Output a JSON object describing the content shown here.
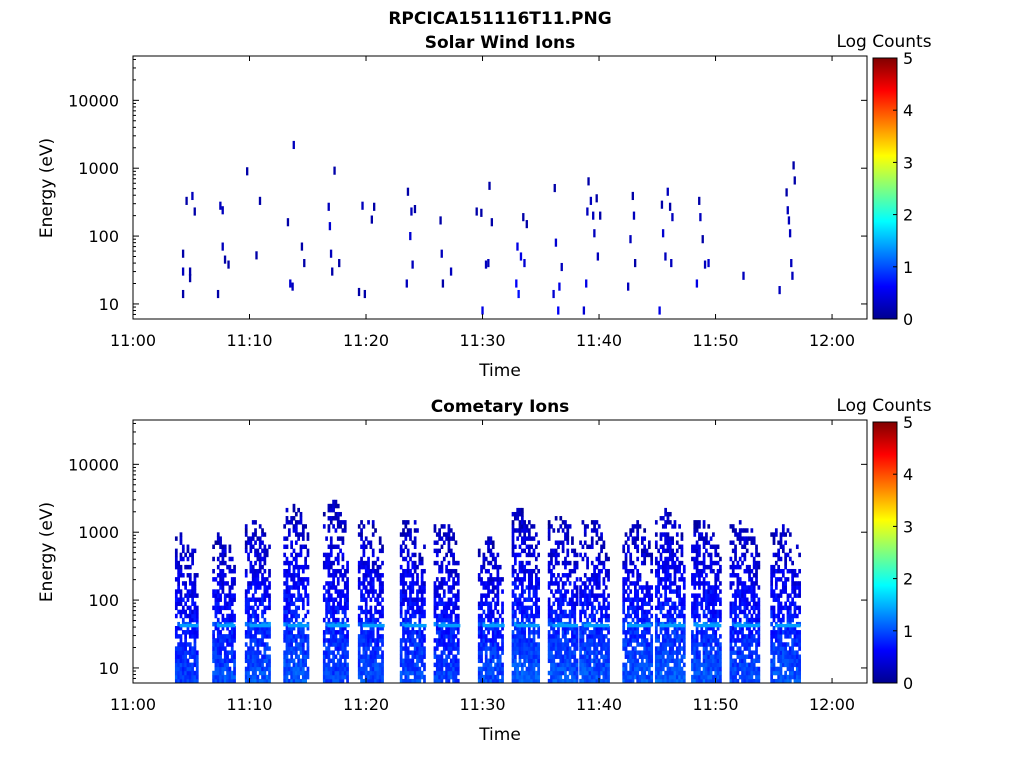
{
  "figure_title": "RPCICA151116T11.PNG",
  "chart_data": [
    {
      "type": "heatmap",
      "title": "Solar Wind Ions",
      "xlabel": "Time",
      "ylabel": "Energy (eV)",
      "x_ticks": [
        "11:00",
        "11:10",
        "11:20",
        "11:30",
        "11:40",
        "11:50",
        "12:00"
      ],
      "x_range": [
        "11:00",
        "12:03"
      ],
      "y_scale": "log",
      "y_ticks": [
        10,
        100,
        1000,
        10000
      ],
      "y_tick_labels": [
        "10",
        "100",
        "1000",
        "10000"
      ],
      "ylim": [
        6,
        45000
      ],
      "colorbar": {
        "label": "Log Counts",
        "range": [
          0,
          5
        ],
        "ticks": [
          "0",
          "1",
          "2",
          "3",
          "4",
          "5"
        ],
        "colormap": "jet"
      },
      "sweep_start_minutes": [
        4.3,
        7.5,
        10.4,
        13.6,
        17.0,
        20.0,
        23.6,
        26.4,
        30.3,
        33.0,
        36.3,
        39.2,
        42.7,
        45.5,
        49.0,
        52.2,
        55.6
      ],
      "note_cells": "Each cell: [minute after 11:00, energy eV, log counts]",
      "cells": [
        [
          4.2,
          55,
          0.2
        ],
        [
          4.2,
          30,
          0.3
        ],
        [
          4.2,
          14,
          0.2
        ],
        [
          4.5,
          330,
          0.2
        ],
        [
          4.8,
          30,
          0.2
        ],
        [
          4.8,
          24,
          0.2
        ],
        [
          5.0,
          390,
          0.3
        ],
        [
          5.2,
          230,
          0.2
        ],
        [
          7.2,
          14,
          0.2
        ],
        [
          7.4,
          280,
          0.3
        ],
        [
          7.6,
          70,
          0.3
        ],
        [
          7.6,
          240,
          0.3
        ],
        [
          7.8,
          45,
          0.2
        ],
        [
          8.1,
          38,
          0.2
        ],
        [
          9.7,
          900,
          0.2
        ],
        [
          10.5,
          52,
          0.2
        ],
        [
          10.8,
          330,
          0.2
        ],
        [
          13.2,
          160,
          0.2
        ],
        [
          13.4,
          20,
          0.4
        ],
        [
          13.6,
          18,
          0.3
        ],
        [
          13.7,
          2200,
          0.3
        ],
        [
          14.4,
          70,
          0.2
        ],
        [
          14.6,
          40,
          0.2
        ],
        [
          16.7,
          270,
          0.3
        ],
        [
          16.8,
          140,
          0.4
        ],
        [
          16.9,
          55,
          0.3
        ],
        [
          17.0,
          30,
          0.2
        ],
        [
          17.2,
          920,
          0.2
        ],
        [
          17.6,
          40,
          0.2
        ],
        [
          19.3,
          15,
          0.2
        ],
        [
          19.6,
          280,
          0.3
        ],
        [
          19.8,
          14,
          0.2
        ],
        [
          20.4,
          175,
          0.2
        ],
        [
          20.6,
          270,
          0.2
        ],
        [
          23.4,
          20,
          0.3
        ],
        [
          23.5,
          450,
          0.2
        ],
        [
          23.7,
          100,
          0.4
        ],
        [
          23.8,
          230,
          0.3
        ],
        [
          23.9,
          38,
          0.3
        ],
        [
          24.1,
          250,
          0.2
        ],
        [
          26.3,
          170,
          0.2
        ],
        [
          26.4,
          55,
          0.3
        ],
        [
          26.5,
          20,
          0.2
        ],
        [
          27.2,
          30,
          0.3
        ],
        [
          29.4,
          230,
          0.2
        ],
        [
          29.8,
          220,
          0.2
        ],
        [
          29.9,
          8,
          0.5
        ],
        [
          30.2,
          38,
          0.3
        ],
        [
          30.4,
          40,
          0.3
        ],
        [
          30.5,
          550,
          0.2
        ],
        [
          30.7,
          160,
          0.2
        ],
        [
          32.8,
          20,
          0.6
        ],
        [
          32.9,
          70,
          0.5
        ],
        [
          33.0,
          14,
          0.7
        ],
        [
          33.2,
          50,
          0.5
        ],
        [
          33.4,
          190,
          0.2
        ],
        [
          33.5,
          40,
          0.4
        ],
        [
          33.7,
          150,
          0.2
        ],
        [
          36.0,
          14,
          0.4
        ],
        [
          36.1,
          510,
          0.2
        ],
        [
          36.2,
          80,
          0.4
        ],
        [
          36.4,
          8,
          0.6
        ],
        [
          36.5,
          18,
          0.5
        ],
        [
          36.7,
          35,
          0.3
        ],
        [
          38.6,
          8,
          0.4
        ],
        [
          38.8,
          20,
          0.5
        ],
        [
          38.9,
          230,
          0.3
        ],
        [
          39.0,
          640,
          0.2
        ],
        [
          39.2,
          330,
          0.3
        ],
        [
          39.4,
          200,
          0.3
        ],
        [
          39.5,
          110,
          0.3
        ],
        [
          39.7,
          360,
          0.2
        ],
        [
          39.8,
          50,
          0.3
        ],
        [
          40.0,
          200,
          0.2
        ],
        [
          42.4,
          18,
          0.3
        ],
        [
          42.6,
          90,
          0.3
        ],
        [
          42.8,
          390,
          0.2
        ],
        [
          42.9,
          200,
          0.3
        ],
        [
          43.0,
          40,
          0.2
        ],
        [
          45.1,
          8,
          0.5
        ],
        [
          45.3,
          290,
          0.2
        ],
        [
          45.4,
          110,
          0.4
        ],
        [
          45.6,
          50,
          0.3
        ],
        [
          45.8,
          450,
          0.3
        ],
        [
          46.0,
          270,
          0.2
        ],
        [
          46.1,
          40,
          0.3
        ],
        [
          46.2,
          190,
          0.3
        ],
        [
          48.3,
          20,
          0.5
        ],
        [
          48.5,
          330,
          0.2
        ],
        [
          48.6,
          190,
          0.3
        ],
        [
          48.8,
          90,
          0.2
        ],
        [
          49.0,
          38,
          0.3
        ],
        [
          49.3,
          40,
          0.4
        ],
        [
          52.3,
          26,
          0.3
        ],
        [
          55.4,
          16,
          0.3
        ],
        [
          56.0,
          440,
          0.2
        ],
        [
          56.1,
          240,
          0.3
        ],
        [
          56.2,
          170,
          0.3
        ],
        [
          56.3,
          110,
          0.3
        ],
        [
          56.4,
          40,
          0.3
        ],
        [
          56.5,
          26,
          0.3
        ],
        [
          56.6,
          1100,
          0.2
        ],
        [
          56.7,
          660,
          0.2
        ]
      ]
    },
    {
      "type": "heatmap",
      "title": "Cometary Ions",
      "xlabel": "Time",
      "ylabel": "Energy (eV)",
      "x_ticks": [
        "11:00",
        "11:10",
        "11:20",
        "11:30",
        "11:40",
        "11:50",
        "12:00"
      ],
      "x_range": [
        "11:00",
        "12:03"
      ],
      "y_scale": "log",
      "y_ticks": [
        10,
        100,
        1000,
        10000
      ],
      "y_tick_labels": [
        "10",
        "100",
        "1000",
        "10000"
      ],
      "ylim": [
        6,
        45000
      ],
      "colorbar": {
        "label": "Log Counts",
        "range": [
          0,
          5
        ],
        "ticks": [
          "0",
          "1",
          "2",
          "3",
          "4",
          "5"
        ],
        "colormap": "jet"
      },
      "sweeps": [
        {
          "start_minute": 3.6,
          "width_minutes": 2.0,
          "max_energy_eV": 900,
          "peak_log_counts": 1.5
        },
        {
          "start_minute": 6.8,
          "width_minutes": 2.0,
          "max_energy_eV": 900,
          "peak_log_counts": 1.6
        },
        {
          "start_minute": 9.6,
          "width_minutes": 2.2,
          "max_energy_eV": 1500,
          "peak_log_counts": 1.7
        },
        {
          "start_minute": 12.9,
          "width_minutes": 2.2,
          "max_energy_eV": 2500,
          "peak_log_counts": 1.7
        },
        {
          "start_minute": 16.3,
          "width_minutes": 2.3,
          "max_energy_eV": 2800,
          "peak_log_counts": 1.5
        },
        {
          "start_minute": 19.3,
          "width_minutes": 2.3,
          "max_energy_eV": 1500,
          "peak_log_counts": 1.6
        },
        {
          "start_minute": 22.9,
          "width_minutes": 2.3,
          "max_energy_eV": 1500,
          "peak_log_counts": 1.6
        },
        {
          "start_minute": 25.8,
          "width_minutes": 2.3,
          "max_energy_eV": 1400,
          "peak_log_counts": 1.5
        },
        {
          "start_minute": 29.6,
          "width_minutes": 2.3,
          "max_energy_eV": 800,
          "peak_log_counts": 1.6
        },
        {
          "start_minute": 32.5,
          "width_minutes": 2.4,
          "max_energy_eV": 2200,
          "peak_log_counts": 1.8
        },
        {
          "start_minute": 35.6,
          "width_minutes": 2.6,
          "max_energy_eV": 1600,
          "peak_log_counts": 1.7
        },
        {
          "start_minute": 38.3,
          "width_minutes": 2.6,
          "max_energy_eV": 1500,
          "peak_log_counts": 1.7
        },
        {
          "start_minute": 42.0,
          "width_minutes": 2.5,
          "max_energy_eV": 1400,
          "peak_log_counts": 1.7
        },
        {
          "start_minute": 44.8,
          "width_minutes": 2.6,
          "max_energy_eV": 2000,
          "peak_log_counts": 1.8
        },
        {
          "start_minute": 47.9,
          "width_minutes": 2.6,
          "max_energy_eV": 1500,
          "peak_log_counts": 1.7
        },
        {
          "start_minute": 51.2,
          "width_minutes": 2.6,
          "max_energy_eV": 1400,
          "peak_log_counts": 1.6
        },
        {
          "start_minute": 54.7,
          "width_minutes": 2.6,
          "max_energy_eV": 1200,
          "peak_log_counts": 1.7
        }
      ],
      "band_energy_eV": 42,
      "band_log_counts": 1.4
    }
  ]
}
